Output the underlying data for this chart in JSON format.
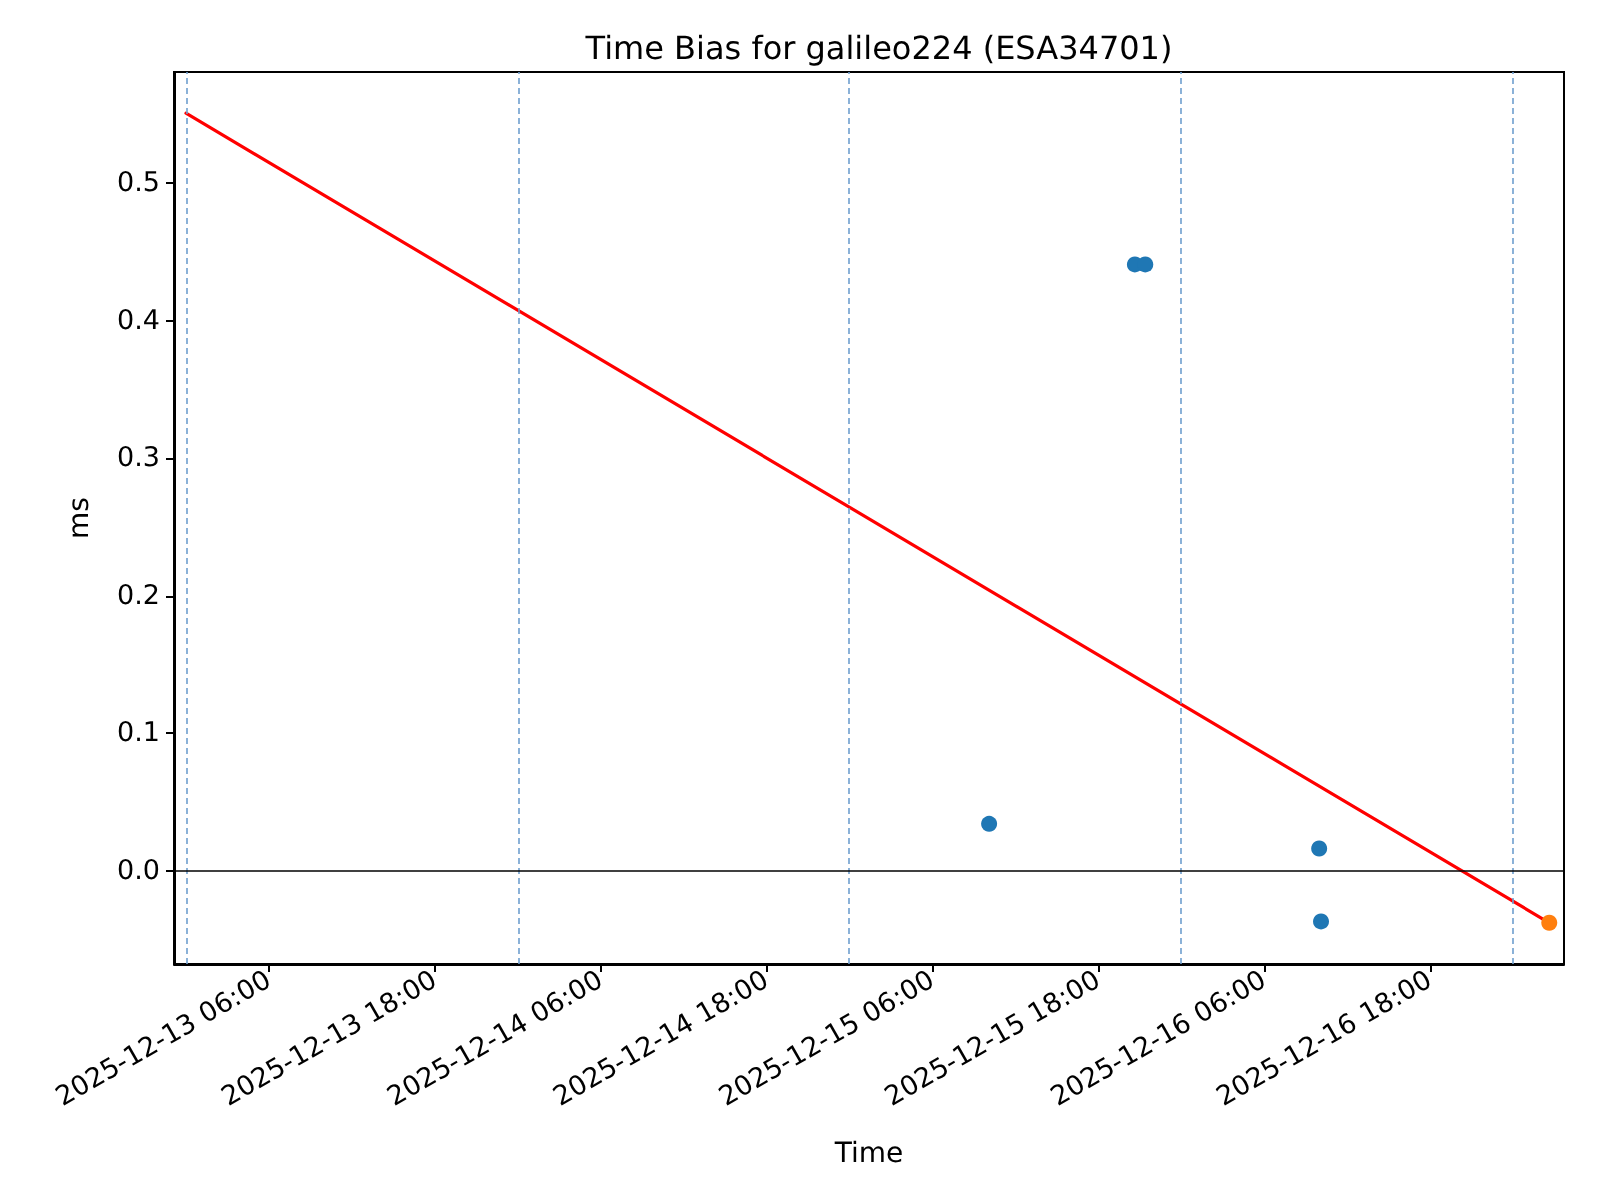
{
  "chart_data": {
    "type": "scatter",
    "title": "Time Bias for galileo224 (ESA34701)",
    "xlabel": "Time",
    "ylabel": "ms",
    "xlim": [
      "2025-12-12T23:08",
      "2025-12-17T03:43"
    ],
    "ylim": [
      -0.068,
      0.581
    ],
    "xticks": [
      {
        "value": "2025-12-13T06:00",
        "label": "2025-12-13 06:00"
      },
      {
        "value": "2025-12-13T18:00",
        "label": "2025-12-13 18:00"
      },
      {
        "value": "2025-12-14T06:00",
        "label": "2025-12-14 06:00"
      },
      {
        "value": "2025-12-14T18:00",
        "label": "2025-12-14 18:00"
      },
      {
        "value": "2025-12-15T06:00",
        "label": "2025-12-15 06:00"
      },
      {
        "value": "2025-12-15T18:00",
        "label": "2025-12-15 18:00"
      },
      {
        "value": "2025-12-16T06:00",
        "label": "2025-12-16 06:00"
      },
      {
        "value": "2025-12-16T18:00",
        "label": "2025-12-16 18:00"
      }
    ],
    "yticks": [
      {
        "value": 0,
        "label": "0.0"
      },
      0.1,
      0.2,
      0.3,
      0.4,
      0.5
    ],
    "marker": "circle",
    "series": [
      {
        "color": "#1f77b4",
        "x": [
          "2025-12-15T10:07",
          "2025-12-15T20:40",
          "2025-12-15T21:25",
          "2025-12-16T10:00",
          "2025-12-16T10:08"
        ],
        "values": [
          0.034,
          0.441,
          0.441,
          0.016,
          -0.037
        ]
      },
      {
        "color": "#ff7f0e",
        "x": [
          "2025-12-17T02:39"
        ],
        "values": [
          -0.038
        ]
      },
      {
        "type": "line",
        "color": "#ff0000",
        "marker": "none",
        "line_style": "solid",
        "x": [
          "2025-12-13T00:00",
          "2025-12-17T02:39"
        ],
        "values": [
          0.551,
          -0.038
        ]
      }
    ],
    "ref_lines": [
      {
        "axis": "x",
        "value": "2025-12-13T00:00",
        "color": "#6f9fcf",
        "line_style": "dashed"
      },
      {
        "axis": "x",
        "value": "2025-12-14T00:00",
        "color": "#6f9fcf",
        "line_style": "dashed"
      },
      {
        "axis": "x",
        "value": "2025-12-15T00:00",
        "color": "#6f9fcf",
        "line_style": "dashed"
      },
      {
        "axis": "x",
        "value": "2025-12-16T00:00",
        "color": "#6f9fcf",
        "line_style": "dashed"
      },
      {
        "axis": "x",
        "value": "2025-12-17T00:00",
        "color": "#6f9fcf",
        "line_style": "dashed"
      },
      {
        "axis": "y",
        "value": 0,
        "color": "#000000",
        "line_style": "solid"
      }
    ]
  }
}
